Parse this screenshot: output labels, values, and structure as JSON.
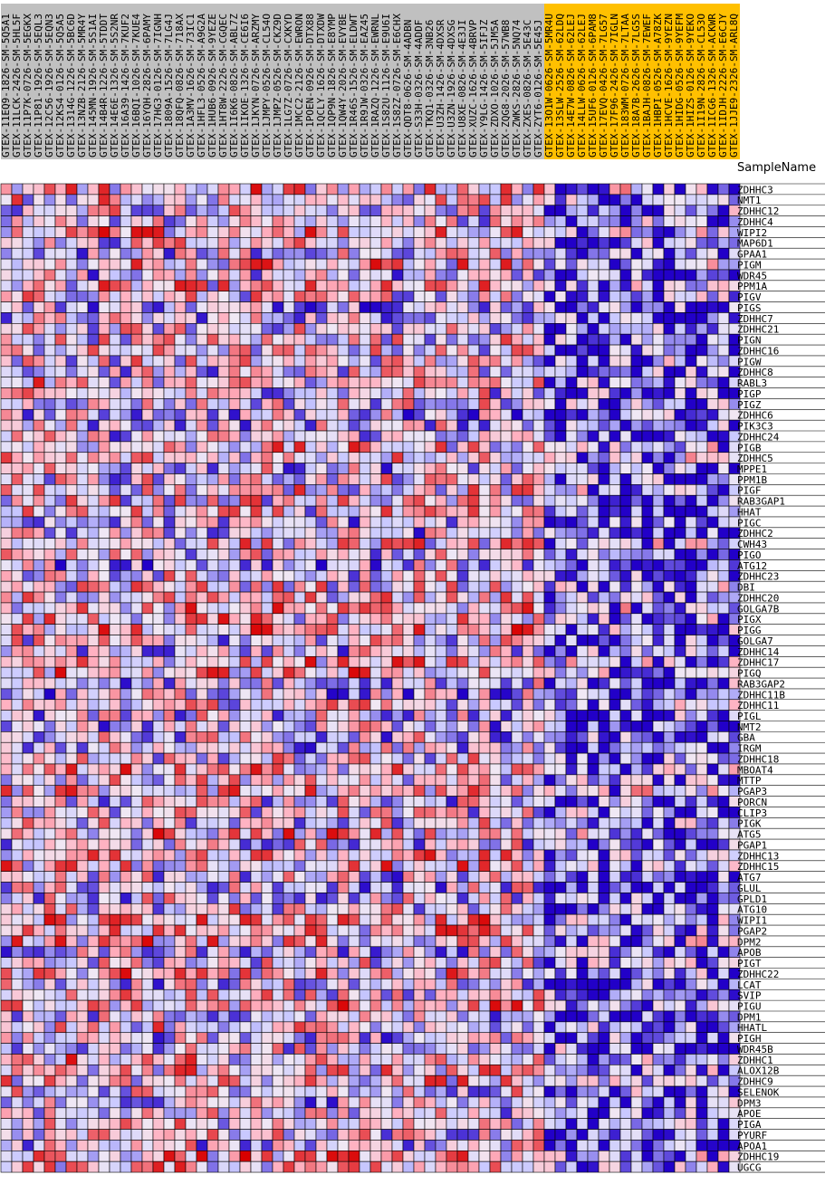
{
  "chart_data": {
    "type": "heatmap",
    "row_header": "SampleName",
    "columns": [
      {
        "name": "GTEX-11EQ9-1826-SM-5Q5A1",
        "group": "normal"
      },
      {
        "name": "GTEX-11LCK-2426-SM-5HL5F",
        "group": "normal"
      },
      {
        "name": "GTEX-11P7K-0726-SM-5EGKX",
        "group": "normal"
      },
      {
        "name": "GTEX-11P81-1926-SM-5EQL3",
        "group": "normal"
      },
      {
        "name": "GTEX-12C56-1926-SM-5EQN3",
        "group": "normal"
      },
      {
        "name": "GTEX-12KS4-0126-SM-5Q5A5",
        "group": "normal"
      },
      {
        "name": "GTEX-1314G-1226-SM-5BC6D",
        "group": "normal"
      },
      {
        "name": "GTEX-13NZB-2126-SM-5MR4Y",
        "group": "normal"
      },
      {
        "name": "GTEX-145MN-1926-SM-5S1AI",
        "group": "normal"
      },
      {
        "name": "GTEX-14B4R-1226-SM-5TDDT",
        "group": "normal"
      },
      {
        "name": "GTEX-14E6E-1326-SM-5S2NR",
        "group": "normal"
      },
      {
        "name": "GTEX-16A39-1426-SM-7KUF2",
        "group": "normal"
      },
      {
        "name": "GTEX-16BQI-1026-SM-7KUE4",
        "group": "normal"
      },
      {
        "name": "GTEX-16YQH-2826-SM-6PAMY",
        "group": "normal"
      },
      {
        "name": "GTEX-17HG3-0126-SM-7IGNH",
        "group": "normal"
      },
      {
        "name": "GTEX-1809A-1526-SM-7LG4J",
        "group": "normal"
      },
      {
        "name": "GTEX-18QFQ-0826-SM-718AX",
        "group": "normal"
      },
      {
        "name": "GTEX-1A3MV-1626-SM-73IC1",
        "group": "normal"
      },
      {
        "name": "GTEX-1HFL3-0526-SM-A9G2A",
        "group": "normal"
      },
      {
        "name": "GTEX-1HUB6-0926-SM-9YEZE",
        "group": "normal"
      },
      {
        "name": "GTEX-1HT8W-2226-SM-CGQEC",
        "group": "normal"
      },
      {
        "name": "GTEX-1I6K6-0826-SM-ABL7Z",
        "group": "normal"
      },
      {
        "name": "GTEX-1IKOE-1326-SM-CE6I6",
        "group": "normal"
      },
      {
        "name": "GTEX-1JKYN-0726-SM-ARZMY",
        "group": "normal"
      },
      {
        "name": "GTEX-1JMPY-0526-SM-CL54O",
        "group": "normal"
      },
      {
        "name": "GTEX-1JMPZ-0526-SM-CKZ9D",
        "group": "normal"
      },
      {
        "name": "GTEX-1LG7Z-0726-SM-CXKYD",
        "group": "normal"
      },
      {
        "name": "GTEX-1MCC2-2126-SM-EWRON",
        "group": "normal"
      },
      {
        "name": "GTEX-1POEN-0926-SM-DTX88",
        "group": "normal"
      },
      {
        "name": "GTEX-1QCLY-1626-SM-DTXDW",
        "group": "normal"
      },
      {
        "name": "GTEX-1QP9N-1826-SM-E8YMP",
        "group": "normal"
      },
      {
        "name": "GTEX-1QW4Y-2026-SM-EVYBE",
        "group": "normal"
      },
      {
        "name": "GTEX-1R46S-1526-SM-ELDWT",
        "group": "normal"
      },
      {
        "name": "GTEX-1R9JW-0326-SM-EAZ45",
        "group": "normal"
      },
      {
        "name": "GTEX-1RAZQ-1226-SM-EWRNL",
        "group": "normal"
      },
      {
        "name": "GTEX-1S82U-1126-SM-E9U6I",
        "group": "normal"
      },
      {
        "name": "GTEX-1S82Z-0726-SM-E6CHX",
        "group": "normal"
      },
      {
        "name": "GTEX-QDT8-0626-SM-4ADBN",
        "group": "normal"
      },
      {
        "name": "GTEX-S33H-0326-SM-4ADDF",
        "group": "normal"
      },
      {
        "name": "GTEX-TKQ1-0326-SM-3NB26",
        "group": "normal"
      },
      {
        "name": "GTEX-U3ZH-1426-SM-4DXSR",
        "group": "normal"
      },
      {
        "name": "GTEX-U3ZN-1926-SM-4DXSG",
        "group": "normal"
      },
      {
        "name": "GTEX-U8XE-0826-SM-4E3JI",
        "group": "normal"
      },
      {
        "name": "GTEX-XUZC-1626-SM-4BRVP",
        "group": "normal"
      },
      {
        "name": "GTEX-Y9LG-1426-SM-5IFJZ",
        "group": "normal"
      },
      {
        "name": "GTEX-ZDXO-1026-SM-5JM5A",
        "group": "normal"
      },
      {
        "name": "GTEX-ZQG8-2026-SM-57WB8",
        "group": "normal"
      },
      {
        "name": "GTEX-ZWKS-2826-SM-5NQ74",
        "group": "normal"
      },
      {
        "name": "GTEX-ZXES-0826-SM-5E43C",
        "group": "normal"
      },
      {
        "name": "GTEX-ZYT6-0126-SM-5E45J",
        "group": "normal"
      },
      {
        "name": "GTEX-13O1W-0626-SM-5MR4U",
        "group": "highlighted"
      },
      {
        "name": "GTEX-13SLW-2526-SM-62LDQ",
        "group": "highlighted"
      },
      {
        "name": "GTEX-14E7W-0826-SM-62LEJ",
        "group": "highlighted"
      },
      {
        "name": "GTEX-14LLW-0626-SM-62LEJ",
        "group": "highlighted"
      },
      {
        "name": "GTEX-15UF6-0126-SM-6PAM8",
        "group": "highlighted"
      },
      {
        "name": "GTEX-17EVQ-0426-SM-7LG57",
        "group": "highlighted"
      },
      {
        "name": "GTEX-17F96-2426-SM-7IGLN",
        "group": "highlighted"
      },
      {
        "name": "GTEX-183WM-0726-SM-7LTAA",
        "group": "highlighted"
      },
      {
        "name": "GTEX-18A7B-2626-SM-7LG5S",
        "group": "highlighted"
      },
      {
        "name": "GTEX-1BAJH-0826-SM-7EWEF",
        "group": "highlighted"
      },
      {
        "name": "GTEX-1HBPI-0526-SM-A78ZK",
        "group": "highlighted"
      },
      {
        "name": "GTEX-1HCVE-1626-SM-9YEZN",
        "group": "highlighted"
      },
      {
        "name": "GTEX-1HIDG-0526-SM-9YEFM",
        "group": "highlighted"
      },
      {
        "name": "GTEX-1HIZS-0126-SM-9YEKO",
        "group": "highlighted"
      },
      {
        "name": "GTEX-1I19N-2826-SM-CL53O",
        "group": "highlighted"
      },
      {
        "name": "GTEX-1ICG6-1326-SM-ACKWR",
        "group": "highlighted"
      },
      {
        "name": "GTEX-1IDJH-2226-SM-E6CJY",
        "group": "highlighted"
      },
      {
        "name": "GTEX-1JJE9-2326-SM-ARL8Q",
        "group": "highlighted"
      }
    ],
    "rows": [
      "ZDHHC3",
      "NMT1",
      "ZDHHC12",
      "ZDHHC4",
      "WIPI2",
      "MAP6D1",
      "GPAA1",
      "PIGM",
      "WDR45",
      "PPM1A",
      "PIGV",
      "PIGS",
      "ZDHHC7",
      "ZDHHC21",
      "PIGN",
      "ZDHHC16",
      "PIGW",
      "ZDHHC8",
      "RABL3",
      "PIGP",
      "PIGZ",
      "ZDHHC6",
      "PIK3C3",
      "ZDHHC24",
      "PIGB",
      "ZDHHC5",
      "MPPE1",
      "PPM1B",
      "PIGF",
      "RAB3GAP1",
      "HHAT",
      "PIGC",
      "ZDHHC2",
      "CWH43",
      "PIGO",
      "ATG12",
      "ZDHHC23",
      "DBI",
      "ZDHHC20",
      "GOLGA7B",
      "PIGX",
      "PIGG",
      "GOLGA7",
      "ZDHHC14",
      "ZDHHC17",
      "PIGQ",
      "RAB3GAP2",
      "ZDHHC11B",
      "ZDHHC11",
      "PIGL",
      "NMT2",
      "GBA",
      "IRGM",
      "ZDHHC18",
      "MBOAT4",
      "MTTP",
      "PGAP3",
      "PORCN",
      "CLIP3",
      "PIGK",
      "ATG5",
      "PGAP1",
      "ZDHHC13",
      "ZDHHC15",
      "ATG7",
      "GLUL",
      "GPLD1",
      "ATG10",
      "WIPI1",
      "PGAP2",
      "DPM2",
      "APOB",
      "PIGT",
      "ZDHHC22",
      "LCAT",
      "SVIP",
      "PIGU",
      "DPM1",
      "HHATL",
      "PIGH",
      "WDR45B",
      "ZDHHC1",
      "ALOX12B",
      "ZDHHC9",
      "SELENOK",
      "DPM3",
      "APOE",
      "PIGA",
      "PYURF",
      "APOA1",
      "ZDHHC19",
      "UGCG"
    ],
    "color_scale": {
      "low": "#2200c8",
      "mid_low": "#c8c8ff",
      "mid": "#f0e8f4",
      "mid_high": "#ffb0c0",
      "high": "#d80000"
    },
    "value_range": [
      -3,
      3
    ],
    "highlight_color": "#ffc000",
    "normal_header_color": "#c0c0c0"
  }
}
